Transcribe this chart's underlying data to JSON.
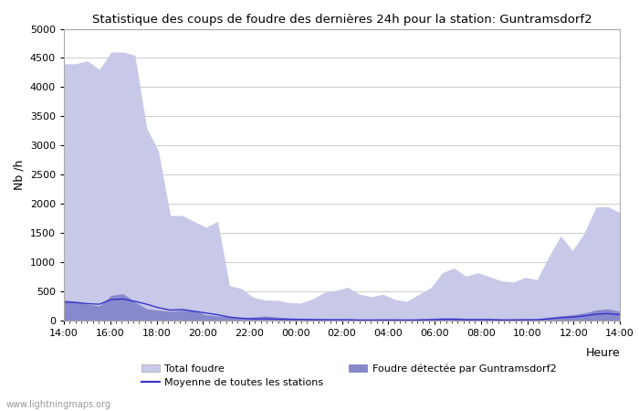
{
  "title": "Statistique des coups de foudre des dernières 24h pour la station: Guntramsdorf2",
  "xlabel": "Heure",
  "ylabel": "Nb /h",
  "xlim": [
    0,
    24
  ],
  "ylim": [
    0,
    5000
  ],
  "yticks": [
    0,
    500,
    1000,
    1500,
    2000,
    2500,
    3000,
    3500,
    4000,
    4500,
    5000
  ],
  "xtick_labels": [
    "14:00",
    "16:00",
    "18:00",
    "20:00",
    "22:00",
    "00:00",
    "02:00",
    "04:00",
    "06:00",
    "08:00",
    "10:00",
    "12:00",
    "14:00"
  ],
  "bg_color": "#ffffff",
  "grid_color": "#cccccc",
  "total_foudre_color": "#c8c8e8",
  "detected_color": "#8888cc",
  "mean_line_color": "#3333cc",
  "watermark": "www.lightningmaps.org",
  "total_foudre": [
    4400,
    4400,
    4450,
    4300,
    4600,
    4600,
    4550,
    3300,
    2900,
    1800,
    1800,
    1700,
    1600,
    1700,
    600,
    550,
    400,
    350,
    350,
    310,
    300,
    370,
    480,
    520,
    570,
    450,
    410,
    450,
    360,
    330,
    450,
    560,
    820,
    900,
    760,
    820,
    750,
    680,
    660,
    740,
    700,
    1100,
    1450,
    1200,
    1500,
    1950,
    1950,
    1850
  ],
  "detected": [
    350,
    330,
    280,
    250,
    430,
    460,
    320,
    200,
    180,
    160,
    180,
    170,
    100,
    80,
    70,
    50,
    60,
    80,
    60,
    50,
    40,
    40,
    30,
    30,
    30,
    20,
    20,
    30,
    25,
    20,
    30,
    40,
    50,
    50,
    40,
    40,
    40,
    30,
    30,
    30,
    30,
    60,
    80,
    100,
    130,
    180,
    200,
    160
  ],
  "mean_line": [
    320,
    310,
    290,
    280,
    360,
    370,
    330,
    280,
    220,
    180,
    190,
    160,
    130,
    100,
    60,
    40,
    30,
    30,
    25,
    20,
    20,
    15,
    15,
    15,
    15,
    10,
    10,
    10,
    10,
    10,
    10,
    15,
    20,
    20,
    15,
    15,
    15,
    10,
    10,
    15,
    15,
    30,
    50,
    60,
    80,
    110,
    120,
    100
  ]
}
